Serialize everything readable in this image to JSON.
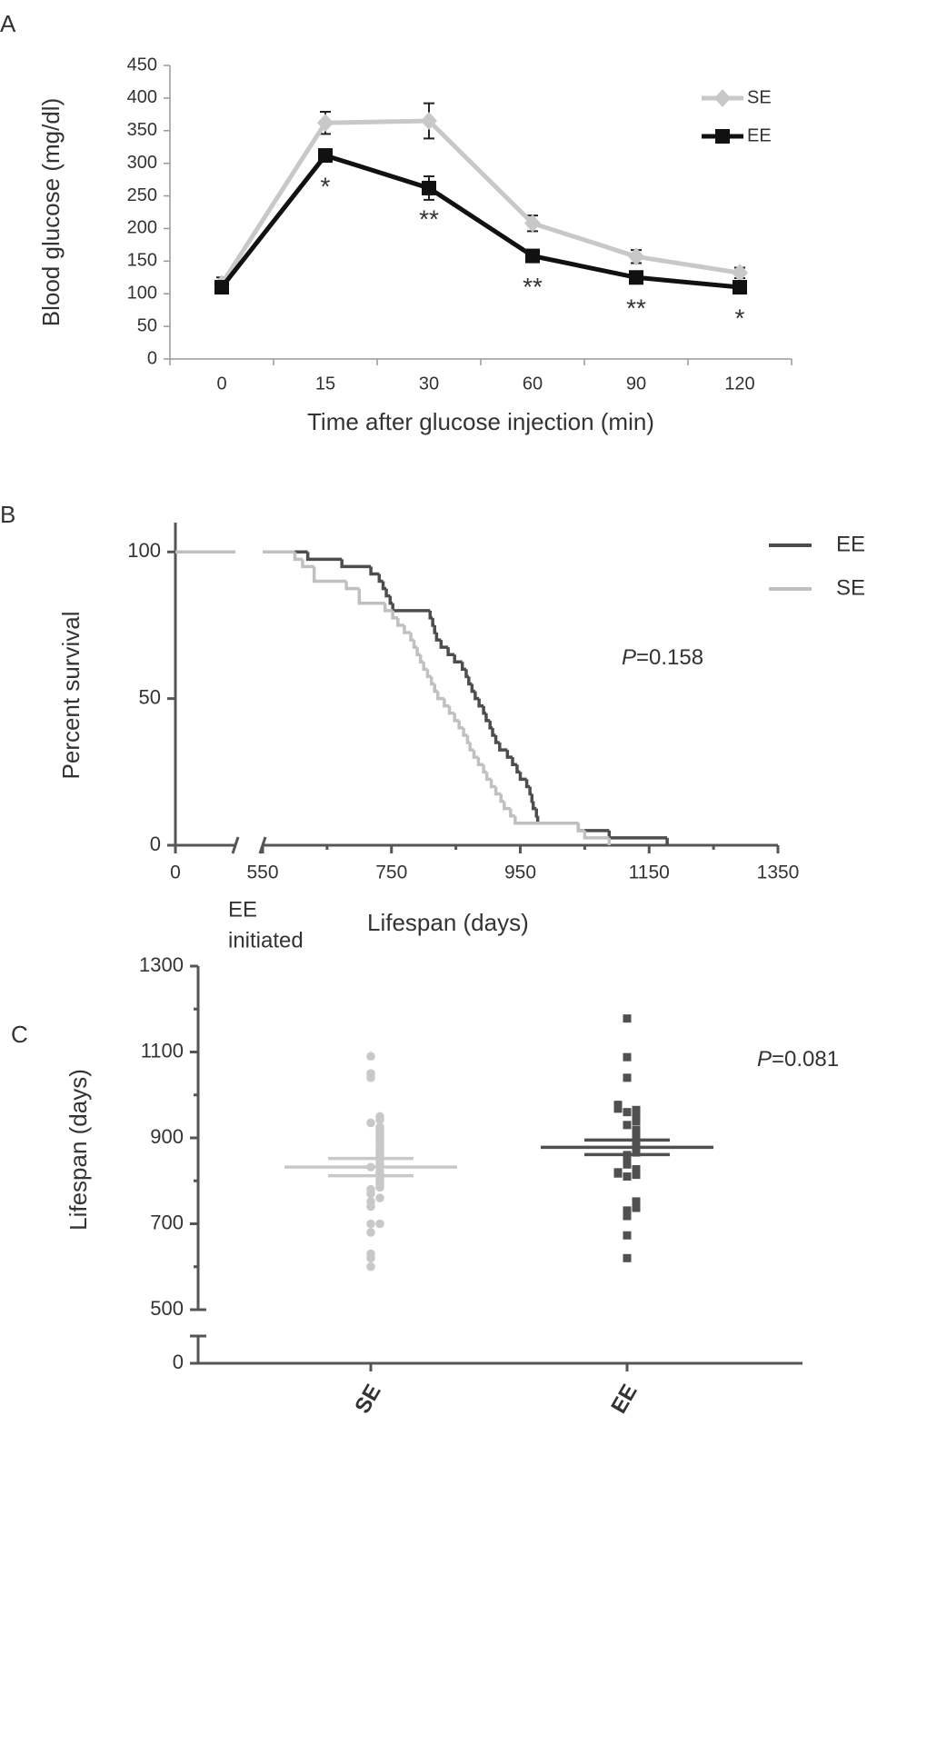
{
  "chart_data": [
    {
      "type": "line",
      "panel": "A",
      "xlabel": "Time after glucose injection (min)",
      "ylabel": "Blood glucose (mg/dl)",
      "categories": [
        "0",
        "15",
        "30",
        "60",
        "90",
        "120"
      ],
      "series": [
        {
          "name": "SE",
          "color": "#c8c8c8",
          "marker": "diamond",
          "values": [
            115,
            362,
            365,
            208,
            157,
            132
          ],
          "errors": [
            10,
            17,
            27,
            12,
            10,
            8
          ]
        },
        {
          "name": "EE",
          "color": "#111111",
          "marker": "square",
          "values": [
            110,
            312,
            262,
            158,
            125,
            110
          ],
          "errors": [
            5,
            8,
            18,
            8,
            8,
            6
          ]
        }
      ],
      "annotations": [
        null,
        "*",
        "**",
        "**",
        "**",
        "*"
      ],
      "ylim": [
        0,
        450
      ],
      "yticks": [
        0,
        50,
        100,
        150,
        200,
        250,
        300,
        350,
        400,
        450
      ]
    },
    {
      "type": "step",
      "panel": "B",
      "xlabel": "Lifespan (days)",
      "ylabel": "Percent survival",
      "break_note": [
        "EE",
        "initiated"
      ],
      "p_value": "P=0.158",
      "x_break": true,
      "series": [
        {
          "name": "EE",
          "color": "#4d4d4d",
          "x": [
            0,
            620,
            673,
            718,
            731,
            737,
            742,
            748,
            752,
            810,
            814,
            817,
            820,
            827,
            838,
            848,
            860,
            866,
            870,
            875,
            880,
            886,
            893,
            897,
            903,
            907,
            912,
            918,
            930,
            938,
            945,
            950,
            960,
            965,
            968,
            970,
            975,
            977,
            1040,
            1088,
            1178
          ],
          "values": [
            100,
            97.5,
            95,
            92.5,
            90,
            87.5,
            85,
            82.5,
            80,
            77.5,
            75,
            72.5,
            70,
            67.5,
            65,
            62.5,
            60,
            57.5,
            55,
            52.5,
            50,
            47.5,
            45,
            42.5,
            40,
            37.5,
            35,
            32.5,
            30,
            27.5,
            25,
            22.5,
            20,
            17.5,
            15,
            12.5,
            10,
            7.5,
            5,
            2.5,
            0
          ]
        },
        {
          "name": "SE",
          "color": "#c0c0c0",
          "x": [
            0,
            600,
            612,
            630,
            680,
            700,
            740,
            752,
            760,
            770,
            780,
            785,
            790,
            795,
            800,
            806,
            812,
            817,
            822,
            832,
            840,
            848,
            855,
            862,
            868,
            872,
            878,
            885,
            893,
            898,
            905,
            912,
            920,
            925,
            935,
            942,
            1040,
            1050,
            1088
          ],
          "values": [
            100,
            97.5,
            95,
            90,
            87.5,
            82.5,
            80,
            77.5,
            75,
            72.5,
            70,
            67.5,
            65,
            62.5,
            60,
            57.5,
            55,
            52.5,
            50,
            47.5,
            45,
            42.5,
            40,
            37.5,
            35,
            32.5,
            30,
            27.5,
            25,
            22.5,
            20,
            17.5,
            15,
            12.5,
            10,
            7.5,
            5,
            2.5,
            0
          ]
        }
      ],
      "xlim": [
        0,
        1350
      ],
      "xticks": [
        0,
        550,
        750,
        950,
        1150,
        1350
      ],
      "minor_xticks": [
        650,
        850,
        1050,
        1250
      ],
      "ylim": [
        0,
        110
      ],
      "yticks": [
        0,
        50,
        100
      ]
    },
    {
      "type": "strip",
      "panel": "C",
      "ylabel": "Lifespan (days)",
      "p_value": "P=0.081",
      "y_break": true,
      "categories": [
        "SE",
        "EE"
      ],
      "series": [
        {
          "name": "SE",
          "color": "#c8c8c8",
          "marker": "circle",
          "mean": 832,
          "sem": 20,
          "values": [
            600,
            620,
            630,
            680,
            700,
            700,
            740,
            752,
            760,
            770,
            780,
            785,
            790,
            795,
            800,
            806,
            812,
            817,
            822,
            832,
            840,
            848,
            855,
            862,
            868,
            872,
            878,
            885,
            893,
            898,
            905,
            912,
            920,
            925,
            935,
            942,
            950,
            1040,
            1050,
            1090
          ]
        },
        {
          "name": "EE",
          "color": "#505050",
          "marker": "square",
          "mean": 878,
          "sem": 17,
          "values": [
            620,
            673,
            718,
            731,
            737,
            742,
            748,
            752,
            810,
            814,
            817,
            820,
            827,
            838,
            848,
            860,
            866,
            870,
            875,
            880,
            886,
            893,
            897,
            903,
            907,
            912,
            918,
            930,
            938,
            945,
            950,
            960,
            965,
            968,
            970,
            975,
            977,
            1040,
            1088,
            1178
          ]
        }
      ],
      "ylim": [
        0,
        1300
      ],
      "yticks": [
        0,
        500,
        700,
        900,
        1100,
        1300
      ],
      "minor_yticks": [
        600,
        800,
        1000,
        1200
      ]
    }
  ]
}
